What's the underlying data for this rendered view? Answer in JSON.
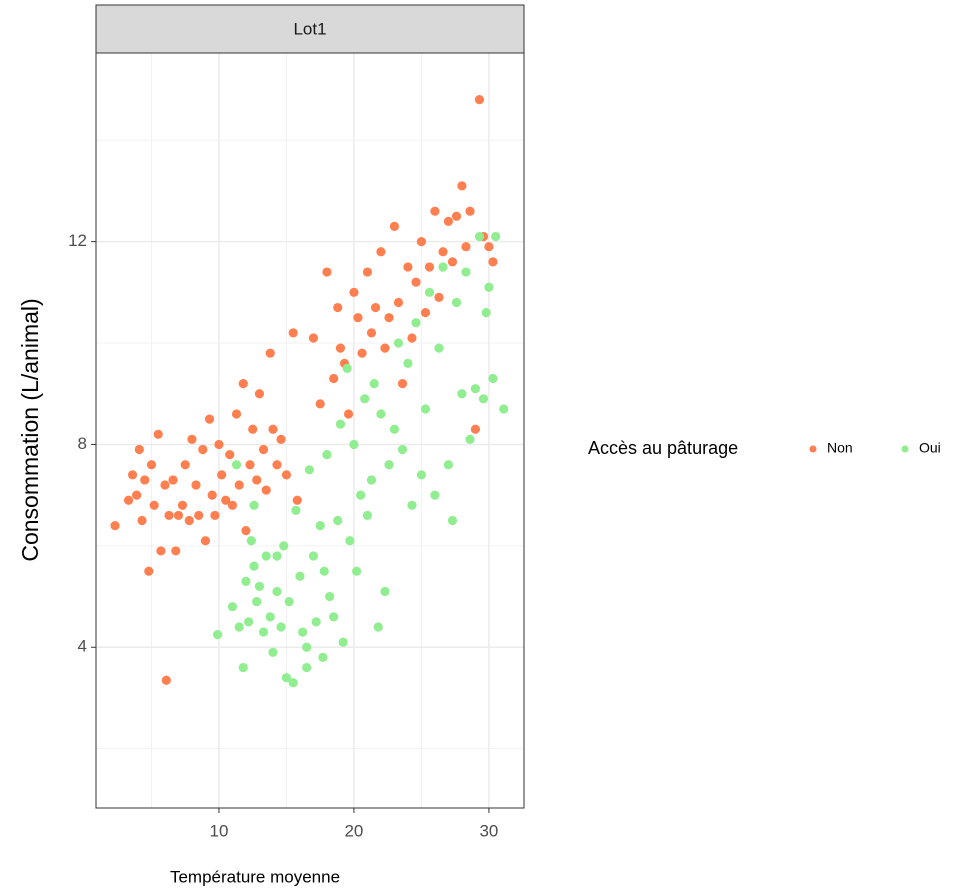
{
  "chart_data": {
    "type": "scatter",
    "facet_label": "Lot1",
    "x_label": "Température moyenne",
    "y_label": "Consommation (L/animal)",
    "legend_title": "Accès au pâturage",
    "legend_position": "right",
    "grid": true,
    "xlim": [
      0.89,
      32.6
    ],
    "xticks": [
      10,
      20,
      30
    ],
    "x_minor_grid": [
      5,
      15,
      25
    ],
    "ylim": [
      0.83,
      15.72
    ],
    "yticks": [
      4,
      8,
      12
    ],
    "y_minor_grid": [
      2,
      6,
      10,
      14
    ],
    "series": [
      {
        "name": "Non",
        "color": "#ff7f50",
        "x": [
          2.3,
          3.3,
          3.6,
          3.9,
          4.1,
          4.3,
          4.5,
          4.8,
          5.0,
          5.2,
          5.5,
          5.7,
          6.0,
          6.1,
          6.3,
          6.6,
          6.8,
          7.0,
          7.3,
          7.5,
          7.8,
          8.0,
          8.3,
          8.5,
          8.8,
          9.0,
          9.3,
          9.5,
          9.7,
          10.0,
          10.2,
          10.5,
          10.8,
          11.0,
          11.3,
          11.5,
          11.8,
          12.0,
          12.3,
          12.5,
          12.8,
          13.0,
          13.3,
          13.5,
          13.8,
          14.0,
          14.3,
          14.6,
          15.0,
          15.5,
          15.8,
          17.0,
          17.5,
          18.0,
          18.5,
          18.8,
          19.0,
          19.3,
          19.6,
          20.0,
          20.3,
          20.6,
          21.0,
          21.3,
          21.6,
          22.0,
          22.3,
          22.6,
          23.0,
          23.3,
          23.6,
          24.0,
          24.3,
          24.6,
          25.0,
          25.3,
          25.6,
          26.0,
          26.3,
          26.6,
          27.0,
          27.3,
          27.6,
          28.0,
          28.3,
          28.6,
          29.0,
          29.3,
          29.6,
          30.0,
          30.3
        ],
        "values": [
          6.4,
          6.9,
          7.4,
          7.0,
          7.9,
          6.5,
          7.3,
          5.5,
          7.6,
          6.8,
          8.2,
          5.9,
          7.2,
          3.35,
          6.6,
          7.3,
          5.9,
          6.6,
          6.8,
          7.6,
          6.5,
          8.1,
          7.2,
          6.6,
          7.9,
          6.1,
          8.5,
          7.0,
          6.6,
          8.0,
          7.4,
          6.9,
          7.8,
          6.8,
          8.6,
          7.2,
          9.2,
          6.3,
          7.6,
          8.3,
          7.3,
          9.0,
          7.9,
          7.1,
          9.8,
          8.3,
          7.6,
          8.1,
          7.4,
          10.2,
          6.9,
          10.1,
          8.8,
          11.4,
          9.3,
          10.7,
          9.9,
          9.6,
          8.6,
          11.0,
          10.5,
          9.8,
          11.4,
          10.2,
          10.7,
          11.8,
          9.9,
          10.5,
          12.3,
          10.8,
          9.2,
          11.5,
          10.1,
          11.2,
          12.0,
          10.6,
          11.5,
          12.6,
          10.9,
          11.8,
          12.4,
          11.6,
          12.5,
          13.1,
          11.9,
          12.6,
          8.3,
          14.8,
          12.1,
          11.9,
          11.6
        ]
      },
      {
        "name": "Oui",
        "color": "#90ee90",
        "x": [
          9.9,
          11.0,
          11.3,
          11.5,
          11.8,
          12.0,
          12.2,
          12.4,
          12.6,
          12.8,
          13.0,
          13.3,
          13.5,
          13.8,
          14.0,
          14.3,
          14.6,
          14.8,
          15.0,
          15.2,
          15.5,
          15.7,
          16.0,
          16.2,
          16.5,
          16.7,
          17.0,
          17.2,
          17.5,
          17.7,
          18.0,
          18.2,
          18.5,
          18.8,
          19.0,
          19.2,
          19.5,
          19.7,
          20.0,
          20.2,
          20.5,
          20.8,
          21.0,
          21.3,
          21.5,
          21.8,
          22.0,
          22.3,
          22.6,
          23.0,
          23.3,
          23.6,
          24.0,
          24.3,
          24.6,
          25.0,
          25.3,
          25.6,
          26.0,
          26.3,
          26.6,
          27.0,
          27.3,
          27.6,
          28.0,
          28.3,
          28.6,
          29.0,
          29.3,
          29.6,
          30.0,
          30.3,
          30.5,
          31.1,
          29.8,
          17.8,
          16.5,
          14.3,
          12.6
        ],
        "values": [
          4.25,
          4.8,
          7.6,
          4.4,
          3.6,
          5.3,
          4.5,
          6.1,
          5.6,
          4.9,
          5.2,
          4.3,
          5.8,
          4.6,
          3.9,
          5.1,
          4.4,
          6.0,
          3.4,
          4.9,
          3.3,
          6.7,
          5.4,
          4.3,
          3.6,
          7.5,
          5.8,
          4.5,
          6.4,
          3.8,
          7.8,
          5.0,
          4.6,
          6.5,
          8.4,
          4.1,
          9.5,
          6.1,
          8.0,
          5.5,
          7.0,
          8.9,
          6.6,
          7.3,
          9.2,
          4.4,
          8.6,
          5.1,
          7.6,
          8.3,
          10.0,
          7.9,
          9.6,
          6.8,
          10.4,
          7.4,
          8.7,
          11.0,
          7.0,
          9.9,
          11.5,
          7.6,
          6.5,
          10.8,
          9.0,
          11.4,
          8.1,
          9.1,
          12.1,
          8.9,
          11.1,
          9.3,
          12.1,
          8.7,
          10.6,
          5.5,
          4.0,
          5.8,
          6.8
        ]
      }
    ]
  }
}
